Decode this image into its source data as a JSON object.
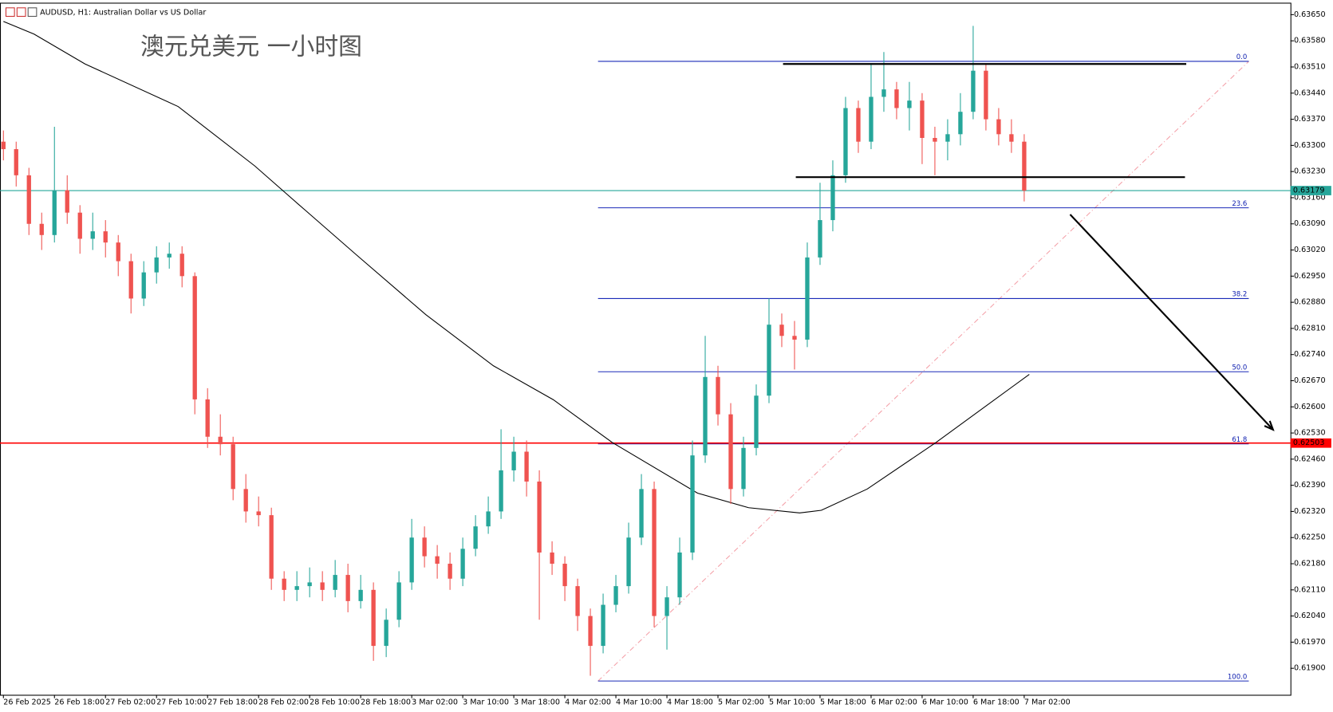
{
  "chart_data": {
    "type": "candlestick",
    "header": "AUDUSD, H1:  Australian Dollar vs US Dollar",
    "annotation": "澳元兑美元 一小时图",
    "up_color": "#26a69a",
    "down_color": "#ef5350",
    "xlim": [
      -0.267,
      100.867
    ],
    "ylim": [
      0.61829,
      0.63682
    ],
    "xticks": [
      {
        "value": 0,
        "label": "26 Feb 2025"
      },
      {
        "value": 4,
        "label": "26 Feb 18:00"
      },
      {
        "value": 8,
        "label": "27 Feb 02:00"
      },
      {
        "value": 12,
        "label": "27 Feb 10:00"
      },
      {
        "value": 16,
        "label": "27 Feb 18:00"
      },
      {
        "value": 20,
        "label": "28 Feb 02:00"
      },
      {
        "value": 24,
        "label": "28 Feb 10:00"
      },
      {
        "value": 28,
        "label": "28 Feb 18:00"
      },
      {
        "value": 32,
        "label": "3 Mar 02:00"
      },
      {
        "value": 36,
        "label": "3 Mar 10:00"
      },
      {
        "value": 40,
        "label": "3 Mar 18:00"
      },
      {
        "value": 44,
        "label": "4 Mar 02:00"
      },
      {
        "value": 48,
        "label": "4 Mar 10:00"
      },
      {
        "value": 52,
        "label": "4 Mar 18:00"
      },
      {
        "value": 56,
        "label": "5 Mar 02:00"
      },
      {
        "value": 60,
        "label": "5 Mar 10:00"
      },
      {
        "value": 64,
        "label": "5 Mar 18:00"
      },
      {
        "value": 68,
        "label": "6 Mar 02:00"
      },
      {
        "value": 72,
        "label": "6 Mar 10:00"
      },
      {
        "value": 76,
        "label": "6 Mar 18:00"
      },
      {
        "value": 80,
        "label": "7 Mar 02:00"
      }
    ],
    "yticks": [
      {
        "value": 0.619,
        "label": "0.61900"
      },
      {
        "value": 0.6197,
        "label": "0.61970"
      },
      {
        "value": 0.6204,
        "label": "0.62040"
      },
      {
        "value": 0.6211,
        "label": "0.62110"
      },
      {
        "value": 0.6218,
        "label": "0.62180"
      },
      {
        "value": 0.6225,
        "label": "0.62250"
      },
      {
        "value": 0.6232,
        "label": "0.62320"
      },
      {
        "value": 0.6239,
        "label": "0.62390"
      },
      {
        "value": 0.6246,
        "label": "0.62460"
      },
      {
        "value": 0.6253,
        "label": "0.62530"
      },
      {
        "value": 0.626,
        "label": "0.62600"
      },
      {
        "value": 0.6267,
        "label": "0.62670"
      },
      {
        "value": 0.6274,
        "label": "0.62740"
      },
      {
        "value": 0.6281,
        "label": "0.62810"
      },
      {
        "value": 0.6288,
        "label": "0.62880"
      },
      {
        "value": 0.6295,
        "label": "0.62950"
      },
      {
        "value": 0.6302,
        "label": "0.63020"
      },
      {
        "value": 0.6309,
        "label": "0.63090"
      },
      {
        "value": 0.6316,
        "label": "0.63160"
      },
      {
        "value": 0.6323,
        "label": "0.63230"
      },
      {
        "value": 0.633,
        "label": "0.63300"
      },
      {
        "value": 0.6337,
        "label": "0.63370"
      },
      {
        "value": 0.6344,
        "label": "0.63440"
      },
      {
        "value": 0.6351,
        "label": "0.63510"
      },
      {
        "value": 0.6358,
        "label": "0.63580"
      },
      {
        "value": 0.6365,
        "label": "0.63650"
      }
    ],
    "candles": [
      [
        0.6331,
        0.6334,
        0.6326,
        0.6329
      ],
      [
        0.6329,
        0.6331,
        0.6319,
        0.6322
      ],
      [
        0.6322,
        0.6324,
        0.6306,
        0.6309
      ],
      [
        0.6309,
        0.6312,
        0.6302,
        0.6306
      ],
      [
        0.6306,
        0.6335,
        0.6304,
        0.6318
      ],
      [
        0.6318,
        0.6322,
        0.6309,
        0.6312
      ],
      [
        0.6312,
        0.6314,
        0.6301,
        0.6305
      ],
      [
        0.6305,
        0.6312,
        0.6302,
        0.6307
      ],
      [
        0.6307,
        0.631,
        0.63,
        0.6304
      ],
      [
        0.6304,
        0.6306,
        0.6295,
        0.6299
      ],
      [
        0.6299,
        0.6301,
        0.6285,
        0.6289
      ],
      [
        0.6289,
        0.6299,
        0.6287,
        0.6296
      ],
      [
        0.6296,
        0.6303,
        0.6293,
        0.63
      ],
      [
        0.63,
        0.6304,
        0.6297,
        0.6301
      ],
      [
        0.6301,
        0.6303,
        0.6292,
        0.6295
      ],
      [
        0.6295,
        0.6296,
        0.6258,
        0.6262
      ],
      [
        0.6262,
        0.6265,
        0.6249,
        0.6252
      ],
      [
        0.6252,
        0.6258,
        0.6247,
        0.625
      ],
      [
        0.625,
        0.6252,
        0.6235,
        0.6238
      ],
      [
        0.6238,
        0.6242,
        0.6229,
        0.6232
      ],
      [
        0.6232,
        0.6236,
        0.6228,
        0.6231
      ],
      [
        0.6231,
        0.6233,
        0.6211,
        0.6214
      ],
      [
        0.6214,
        0.6216,
        0.6208,
        0.6211
      ],
      [
        0.6211,
        0.6216,
        0.6208,
        0.6212
      ],
      [
        0.6212,
        0.6217,
        0.6209,
        0.6213
      ],
      [
        0.6213,
        0.6216,
        0.6208,
        0.6211
      ],
      [
        0.6211,
        0.6219,
        0.6209,
        0.6215
      ],
      [
        0.6215,
        0.6218,
        0.6205,
        0.6208
      ],
      [
        0.6208,
        0.6215,
        0.6206,
        0.6211
      ],
      [
        0.6211,
        0.6213,
        0.6192,
        0.6196
      ],
      [
        0.6196,
        0.6206,
        0.6193,
        0.6203
      ],
      [
        0.6203,
        0.6216,
        0.6201,
        0.6213
      ],
      [
        0.6213,
        0.623,
        0.6211,
        0.6225
      ],
      [
        0.6225,
        0.6228,
        0.6217,
        0.622
      ],
      [
        0.622,
        0.6223,
        0.6214,
        0.6218
      ],
      [
        0.6218,
        0.6221,
        0.6211,
        0.6214
      ],
      [
        0.6214,
        0.6225,
        0.6212,
        0.6222
      ],
      [
        0.6222,
        0.6231,
        0.622,
        0.6228
      ],
      [
        0.6228,
        0.6236,
        0.6226,
        0.6232
      ],
      [
        0.6232,
        0.6254,
        0.623,
        0.6243
      ],
      [
        0.6243,
        0.6252,
        0.624,
        0.6248
      ],
      [
        0.6248,
        0.6251,
        0.6236,
        0.624
      ],
      [
        0.624,
        0.6243,
        0.6203,
        0.6221
      ],
      [
        0.6221,
        0.6224,
        0.6215,
        0.6218
      ],
      [
        0.6218,
        0.622,
        0.6208,
        0.6212
      ],
      [
        0.6212,
        0.6214,
        0.62,
        0.6204
      ],
      [
        0.6204,
        0.6206,
        0.6188,
        0.6196
      ],
      [
        0.6196,
        0.621,
        0.6194,
        0.6207
      ],
      [
        0.6207,
        0.6215,
        0.6205,
        0.6212
      ],
      [
        0.6212,
        0.6229,
        0.621,
        0.6225
      ],
      [
        0.6225,
        0.6242,
        0.6223,
        0.6238
      ],
      [
        0.6238,
        0.624,
        0.6201,
        0.6204
      ],
      [
        0.6204,
        0.6212,
        0.6195,
        0.6209
      ],
      [
        0.6209,
        0.6225,
        0.6207,
        0.6221
      ],
      [
        0.6221,
        0.6251,
        0.6219,
        0.6247
      ],
      [
        0.6247,
        0.6279,
        0.6245,
        0.6268
      ],
      [
        0.6268,
        0.6271,
        0.6255,
        0.6258
      ],
      [
        0.6258,
        0.6261,
        0.6234,
        0.6238
      ],
      [
        0.6238,
        0.6252,
        0.6236,
        0.6249
      ],
      [
        0.6249,
        0.6266,
        0.6247,
        0.6263
      ],
      [
        0.6263,
        0.6289,
        0.6261,
        0.6282
      ],
      [
        0.6282,
        0.6285,
        0.6276,
        0.6279
      ],
      [
        0.6279,
        0.6283,
        0.627,
        0.6278
      ],
      [
        0.6278,
        0.6304,
        0.6276,
        0.63
      ],
      [
        0.63,
        0.632,
        0.6298,
        0.631
      ],
      [
        0.631,
        0.6326,
        0.6307,
        0.6322
      ],
      [
        0.6322,
        0.6343,
        0.632,
        0.634
      ],
      [
        0.634,
        0.6342,
        0.6328,
        0.6331
      ],
      [
        0.6331,
        0.6352,
        0.6329,
        0.6343
      ],
      [
        0.6343,
        0.6355,
        0.6339,
        0.6345
      ],
      [
        0.6345,
        0.6347,
        0.6337,
        0.634
      ],
      [
        0.634,
        0.6347,
        0.6334,
        0.6342
      ],
      [
        0.6342,
        0.6344,
        0.6325,
        0.6332
      ],
      [
        0.6332,
        0.6335,
        0.6322,
        0.6331
      ],
      [
        0.6331,
        0.6337,
        0.6326,
        0.6333
      ],
      [
        0.6333,
        0.6344,
        0.633,
        0.6339
      ],
      [
        0.6339,
        0.6362,
        0.6337,
        0.635
      ],
      [
        0.635,
        0.6352,
        0.6334,
        0.6337
      ],
      [
        0.6337,
        0.634,
        0.633,
        0.6333
      ],
      [
        0.6333,
        0.6337,
        0.6328,
        0.6331
      ],
      [
        0.6331,
        0.6333,
        0.6315,
        0.63179
      ]
    ],
    "ma": {
      "color": "#000000",
      "x": [
        0,
        2.4,
        6.4,
        13.7,
        19.7,
        23.1,
        27.7,
        33.1,
        38.4,
        43.1,
        47.7,
        54.4,
        58.4,
        62.4,
        64.1,
        67.7,
        73.1,
        80.4
      ],
      "values": [
        0.63632,
        0.63598,
        0.63518,
        0.63404,
        0.63245,
        0.63143,
        0.63006,
        0.62847,
        0.6271,
        0.62619,
        0.62505,
        0.62369,
        0.6233,
        0.62316,
        0.62323,
        0.6238,
        0.62505,
        0.62687
      ]
    },
    "fib": {
      "color": "#1a2ab8",
      "x": [
        46.6,
        97.6
      ],
      "levels": [
        {
          "label": "0.0",
          "price": 0.63525
        },
        {
          "label": "23.6",
          "price": 0.63133
        },
        {
          "label": "38.2",
          "price": 0.6289
        },
        {
          "label": "50.0",
          "price": 0.62694
        },
        {
          "label": "61.8",
          "price": 0.62501
        },
        {
          "label": "100.0",
          "price": 0.61866
        }
      ]
    },
    "current_price": {
      "value": 0.63179,
      "color": "#26a69a"
    },
    "red_level": {
      "value": 0.62503,
      "color": "#ff0000"
    },
    "trend_lines": [
      {
        "x": [
          61.1,
          92.7
        ],
        "price": 0.63518
      },
      {
        "x": [
          62.1,
          92.6
        ],
        "price": 0.63215
      }
    ],
    "arrow": {
      "x": [
        83.6,
        99.5
      ],
      "price": [
        0.63115,
        0.62539
      ]
    }
  }
}
